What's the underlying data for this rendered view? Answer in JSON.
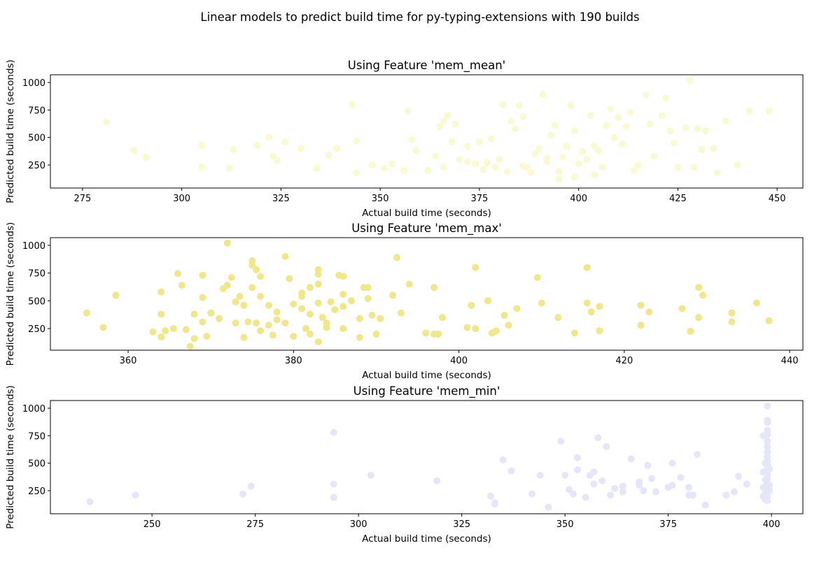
{
  "title": "Linear models to predict build time for py-typing-extensions with 190 builds",
  "chart_data": [
    {
      "type": "scatter",
      "title": "Using Feature 'mem_mean'",
      "xlabel": "Actual build time (seconds)",
      "ylabel": "Predicted build time (seconds)",
      "color": "#fafad2",
      "xlim": [
        266.9,
        456.5
      ],
      "ylim": [
        40,
        1070
      ],
      "xticks": [
        275,
        300,
        325,
        350,
        375,
        400,
        425,
        450
      ],
      "yticks": [
        250,
        500,
        750,
        1000
      ],
      "x": [
        281,
        288,
        291,
        305,
        305,
        312,
        313,
        319,
        322,
        323,
        324,
        326,
        330,
        334,
        337,
        339,
        343,
        344,
        344,
        348,
        351,
        353,
        356,
        357,
        358,
        359,
        362,
        364,
        365,
        366,
        367,
        368,
        369,
        370,
        372,
        374,
        375,
        377,
        378,
        379,
        381,
        382,
        383,
        384,
        385,
        386,
        387,
        389,
        390,
        391,
        392,
        393,
        394,
        395,
        396,
        397,
        398,
        399,
        400,
        401,
        402,
        403,
        404,
        405,
        406,
        407,
        408,
        409,
        410,
        411,
        412,
        413,
        414,
        415,
        417,
        418,
        419,
        421,
        422,
        423,
        424,
        425,
        427,
        428,
        429,
        430,
        431,
        432,
        434,
        435,
        437,
        440,
        443,
        448,
        366,
        372,
        380,
        388,
        395,
        399,
        404,
        392,
        386,
        376
      ],
      "values": [
        640,
        380,
        320,
        430,
        230,
        220,
        390,
        430,
        500,
        330,
        290,
        460,
        400,
        220,
        340,
        400,
        800,
        470,
        180,
        250,
        220,
        260,
        200,
        740,
        480,
        380,
        200,
        330,
        600,
        650,
        700,
        460,
        620,
        300,
        420,
        260,
        460,
        270,
        490,
        230,
        800,
        190,
        650,
        580,
        790,
        690,
        230,
        350,
        400,
        890,
        280,
        520,
        610,
        190,
        320,
        420,
        790,
        560,
        260,
        370,
        300,
        700,
        420,
        380,
        230,
        610,
        760,
        500,
        680,
        440,
        600,
        730,
        200,
        250,
        890,
        620,
        330,
        700,
        860,
        560,
        450,
        230,
        590,
        1020,
        230,
        580,
        390,
        560,
        400,
        180,
        650,
        250,
        740,
        740,
        230,
        280,
        300,
        180,
        120,
        140,
        160,
        310,
        240,
        210
      ]
    },
    {
      "type": "scatter",
      "title": "Using Feature 'mem_max'",
      "xlabel": "Actual build time (seconds)",
      "ylabel": "Predicted build time (seconds)",
      "color": "#f0e68c",
      "xlim": [
        350.6,
        441.6
      ],
      "ylim": [
        55,
        1069
      ],
      "xticks": [
        360,
        380,
        400,
        420,
        440
      ],
      "yticks": [
        250,
        500,
        750,
        1000
      ],
      "x": [
        355,
        357,
        358.5,
        363,
        364,
        364,
        364.5,
        364,
        365.5,
        366,
        366.5,
        367,
        367.5,
        368,
        368,
        369,
        369,
        369,
        369.5,
        370,
        371,
        371.5,
        372,
        372,
        372.5,
        373,
        373,
        373.5,
        374,
        374,
        374.5,
        375,
        375,
        375,
        375.5,
        375.5,
        376,
        376,
        376,
        377,
        377,
        377.5,
        378,
        378,
        379,
        379,
        379.5,
        380,
        380,
        381,
        381,
        381,
        381.5,
        382,
        382,
        382,
        383,
        383,
        383,
        383,
        383,
        383.5,
        384,
        384,
        384.5,
        385,
        385.5,
        386,
        386,
        386,
        386,
        387,
        388,
        388,
        388.5,
        389,
        389,
        389.5,
        390,
        390.5,
        392,
        392.5,
        393,
        394,
        396,
        397,
        397,
        397.5,
        398,
        401,
        401.5,
        402,
        402,
        403.5,
        404,
        404.5,
        405.5,
        406,
        407,
        409.5,
        410,
        412,
        414,
        415.5,
        415.5,
        416,
        417,
        417,
        422,
        422,
        423,
        427,
        428,
        429,
        429,
        429.5,
        433,
        433,
        436,
        437.5
      ],
      "values": [
        390,
        260,
        550,
        220,
        580,
        380,
        230,
        175,
        250,
        745,
        640,
        240,
        90,
        380,
        160,
        730,
        530,
        310,
        180,
        390,
        340,
        610,
        640,
        1020,
        710,
        490,
        300,
        540,
        170,
        460,
        310,
        620,
        820,
        860,
        780,
        300,
        720,
        540,
        230,
        460,
        280,
        190,
        400,
        330,
        900,
        300,
        700,
        470,
        180,
        430,
        570,
        540,
        250,
        380,
        620,
        200,
        780,
        740,
        650,
        130,
        480,
        350,
        300,
        260,
        490,
        420,
        730,
        450,
        560,
        720,
        250,
        500,
        170,
        340,
        620,
        520,
        620,
        370,
        200,
        340,
        550,
        890,
        390,
        650,
        210,
        200,
        620,
        200,
        350,
        260,
        460,
        800,
        250,
        500,
        210,
        230,
        370,
        280,
        430,
        710,
        480,
        350,
        210,
        480,
        800,
        400,
        230,
        450,
        460,
        280,
        400,
        430,
        225,
        350,
        620,
        550,
        310,
        390,
        480,
        320
      ]
    },
    {
      "type": "scatter",
      "title": "Using Feature 'mem_min'",
      "xlabel": "Actual build time (seconds)",
      "ylabel": "Predicted build time (seconds)",
      "color": "#e6e6fa",
      "xlim": [
        225.4,
        407.6
      ],
      "ylim": [
        40,
        1070
      ],
      "xticks": [
        250,
        275,
        300,
        325,
        350,
        375,
        400
      ],
      "yticks": [
        250,
        500,
        750,
        1000
      ],
      "x": [
        235,
        246,
        272,
        274,
        294,
        294,
        294,
        303,
        319,
        332,
        333,
        333,
        335,
        337,
        342,
        344,
        346,
        349,
        350,
        351,
        352,
        353,
        353,
        355,
        356,
        357,
        357,
        358,
        359,
        360,
        361,
        362,
        364,
        364,
        366,
        368,
        368,
        369,
        370,
        371,
        372,
        375,
        376,
        376,
        378,
        380,
        380,
        381,
        382,
        384,
        389,
        391,
        392,
        394,
        398,
        398,
        398,
        398,
        399,
        399,
        399,
        399,
        399,
        399,
        399,
        399,
        399,
        399,
        399,
        399,
        399,
        399,
        399,
        399,
        399,
        399,
        399,
        398.5,
        398.5,
        398.5,
        398.5,
        399.5,
        399.5,
        399.5
      ],
      "values": [
        150,
        210,
        220,
        290,
        780,
        310,
        190,
        390,
        340,
        200,
        140,
        130,
        530,
        430,
        220,
        390,
        100,
        700,
        390,
        260,
        220,
        550,
        440,
        190,
        390,
        310,
        420,
        730,
        340,
        650,
        210,
        270,
        240,
        290,
        540,
        330,
        300,
        250,
        480,
        360,
        240,
        280,
        300,
        500,
        370,
        210,
        280,
        210,
        580,
        120,
        210,
        240,
        380,
        310,
        750,
        420,
        280,
        200,
        1020,
        890,
        870,
        800,
        760,
        700,
        650,
        600,
        560,
        520,
        480,
        440,
        400,
        360,
        320,
        280,
        240,
        200,
        160,
        500,
        350,
        230,
        170,
        450,
        300,
        250
      ]
    }
  ]
}
